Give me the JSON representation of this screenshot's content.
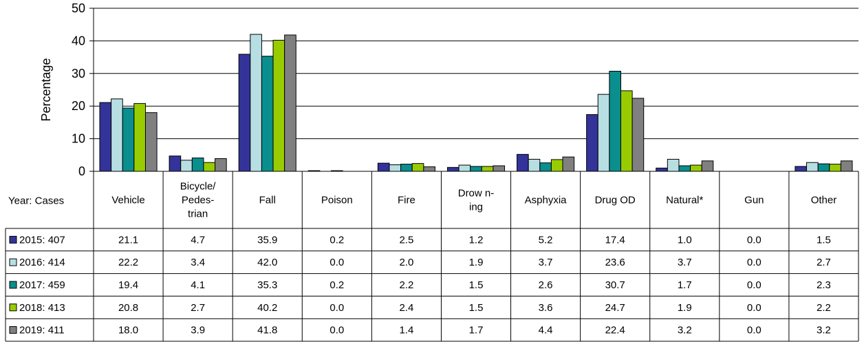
{
  "chart_data": {
    "type": "bar",
    "title": "",
    "xlabel": "",
    "ylabel": "Percentage",
    "ylim": [
      0,
      50
    ],
    "yticks": [
      "0",
      "10",
      "20",
      "30",
      "40",
      "50"
    ],
    "grid": true,
    "table_header": "Year: Cases",
    "categories": [
      [
        "Vehicle"
      ],
      [
        "Bicycle/",
        "Pedes-",
        "trian"
      ],
      [
        "Fall"
      ],
      [
        "Poison"
      ],
      [
        "Fire"
      ],
      [
        "Drow n-",
        "ing"
      ],
      [
        "Asphyxia"
      ],
      [
        "Drug OD"
      ],
      [
        "Natural*"
      ],
      [
        "Gun"
      ],
      [
        "Other"
      ]
    ],
    "series": [
      {
        "name": "2015:  407",
        "color": "#333399",
        "values": [
          21.1,
          4.7,
          35.9,
          0.2,
          2.5,
          1.2,
          5.2,
          17.4,
          1.0,
          0.0,
          1.5
        ],
        "labels": [
          "21.1",
          "4.7",
          "35.9",
          "0.2",
          "2.5",
          "1.2",
          "5.2",
          "17.4",
          "1.0",
          "0.0",
          "1.5"
        ]
      },
      {
        "name": "2016:  414",
        "color": "#b7dfe3",
        "values": [
          22.2,
          3.4,
          42.0,
          0.0,
          2.0,
          1.9,
          3.7,
          23.6,
          3.7,
          0.0,
          2.7
        ],
        "labels": [
          "22.2",
          "3.4",
          "42.0",
          "0.0",
          "2.0",
          "1.9",
          "3.7",
          "23.6",
          "3.7",
          "0.0",
          "2.7"
        ]
      },
      {
        "name": "2017:  459",
        "color": "#0a8e8e",
        "values": [
          19.4,
          4.1,
          35.3,
          0.2,
          2.2,
          1.5,
          2.6,
          30.7,
          1.7,
          0.0,
          2.3
        ],
        "labels": [
          "19.4",
          "4.1",
          "35.3",
          "0.2",
          "2.2",
          "1.5",
          "2.6",
          "30.7",
          "1.7",
          "0.0",
          "2.3"
        ]
      },
      {
        "name": "2018:  413",
        "color": "#99cc00",
        "values": [
          20.8,
          2.7,
          40.2,
          0.0,
          2.4,
          1.5,
          3.6,
          24.7,
          1.9,
          0.0,
          2.2
        ],
        "labels": [
          "20.8",
          "2.7",
          "40.2",
          "0.0",
          "2.4",
          "1.5",
          "3.6",
          "24.7",
          "1.9",
          "0.0",
          "2.2"
        ]
      },
      {
        "name": "2019:  411",
        "color": "#808080",
        "values": [
          18.0,
          3.9,
          41.8,
          0.0,
          1.4,
          1.7,
          4.4,
          22.4,
          3.2,
          0.0,
          3.2
        ],
        "labels": [
          "18.0",
          "3.9",
          "41.8",
          "0.0",
          "1.4",
          "1.7",
          "4.4",
          "22.4",
          "3.2",
          "0.0",
          "3.2"
        ]
      }
    ]
  }
}
